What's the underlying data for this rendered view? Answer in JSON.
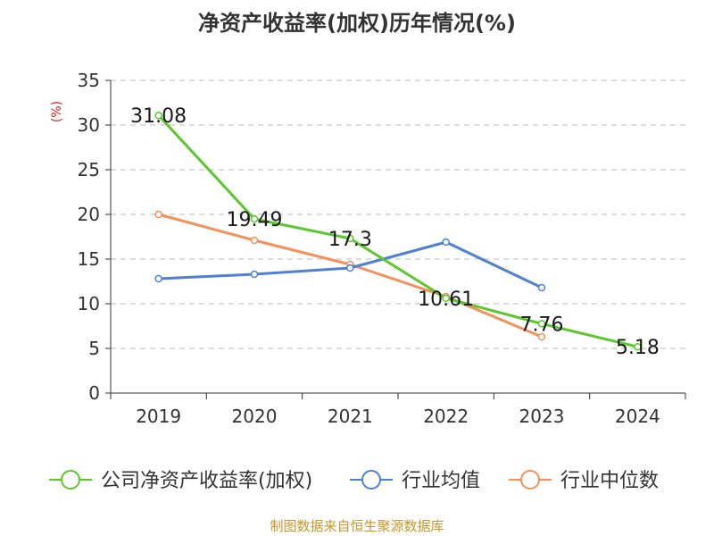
{
  "chart_data": {
    "type": "line",
    "title": "净资产收益率(加权)历年情况(%)",
    "ylabel": "(%)",
    "categories": [
      "2019",
      "2020",
      "2021",
      "2022",
      "2023",
      "2024"
    ],
    "ylim": [
      0,
      35
    ],
    "yticks": [
      0,
      5,
      10,
      15,
      20,
      25,
      30,
      35
    ],
    "grid": true,
    "legend_position": "bottom",
    "series": [
      {
        "name": "公司净资产收益率(加权)",
        "color": "#5cc72c",
        "values": [
          31.08,
          19.49,
          17.3,
          10.61,
          7.76,
          5.18
        ],
        "labels_shown": true
      },
      {
        "name": "行业均值",
        "color": "#4f80d6",
        "values": [
          12.8,
          13.3,
          14.0,
          16.9,
          11.8,
          null
        ],
        "labels_shown": false
      },
      {
        "name": "行业中位数",
        "color": "#f5905a",
        "values": [
          20.0,
          17.1,
          14.4,
          10.8,
          6.3,
          null
        ],
        "labels_shown": false
      }
    ]
  },
  "footer": {
    "source": "制图数据来自恒生聚源数据库"
  }
}
